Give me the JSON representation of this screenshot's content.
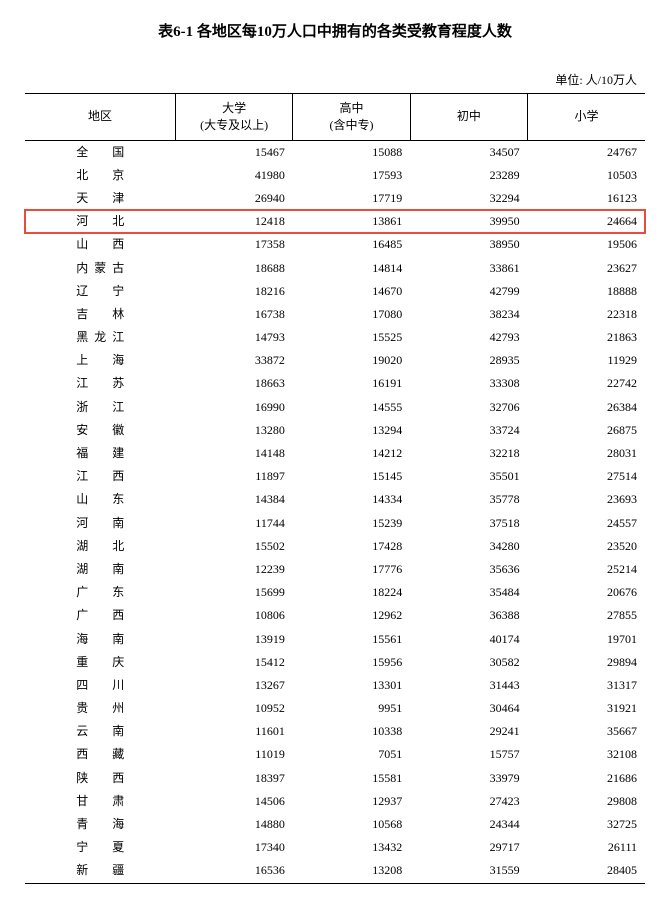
{
  "title": "表6-1 各地区每10万人口中拥有的各类受教育程度人数",
  "unit": "单位: 人/10万人",
  "columns": {
    "region": "地区",
    "univ": "大学",
    "univ_sub": "(大专及以上)",
    "high": "高中",
    "high_sub": "(含中专)",
    "middle": "初中",
    "primary": "小学"
  },
  "highlight_index": 3,
  "highlight_color": "#e74c3c",
  "rows": [
    {
      "region": "全　国",
      "univ": 15467,
      "high": 15088,
      "middle": 34507,
      "primary": 24767
    },
    {
      "region": "北　京",
      "univ": 41980,
      "high": 17593,
      "middle": 23289,
      "primary": 10503
    },
    {
      "region": "天　津",
      "univ": 26940,
      "high": 17719,
      "middle": 32294,
      "primary": 16123
    },
    {
      "region": "河　北",
      "univ": 12418,
      "high": 13861,
      "middle": 39950,
      "primary": 24664
    },
    {
      "region": "山　西",
      "univ": 17358,
      "high": 16485,
      "middle": 38950,
      "primary": 19506
    },
    {
      "region": "内蒙古",
      "univ": 18688,
      "high": 14814,
      "middle": 33861,
      "primary": 23627,
      "cls": "region-3ch"
    },
    {
      "region": "辽　宁",
      "univ": 18216,
      "high": 14670,
      "middle": 42799,
      "primary": 18888
    },
    {
      "region": "吉　林",
      "univ": 16738,
      "high": 17080,
      "middle": 38234,
      "primary": 22318
    },
    {
      "region": "黑龙江",
      "univ": 14793,
      "high": 15525,
      "middle": 42793,
      "primary": 21863,
      "cls": "region-3ch"
    },
    {
      "region": "上　海",
      "univ": 33872,
      "high": 19020,
      "middle": 28935,
      "primary": 11929
    },
    {
      "region": "江　苏",
      "univ": 18663,
      "high": 16191,
      "middle": 33308,
      "primary": 22742
    },
    {
      "region": "浙　江",
      "univ": 16990,
      "high": 14555,
      "middle": 32706,
      "primary": 26384
    },
    {
      "region": "安　徽",
      "univ": 13280,
      "high": 13294,
      "middle": 33724,
      "primary": 26875
    },
    {
      "region": "福　建",
      "univ": 14148,
      "high": 14212,
      "middle": 32218,
      "primary": 28031
    },
    {
      "region": "江　西",
      "univ": 11897,
      "high": 15145,
      "middle": 35501,
      "primary": 27514
    },
    {
      "region": "山　东",
      "univ": 14384,
      "high": 14334,
      "middle": 35778,
      "primary": 23693
    },
    {
      "region": "河　南",
      "univ": 11744,
      "high": 15239,
      "middle": 37518,
      "primary": 24557
    },
    {
      "region": "湖　北",
      "univ": 15502,
      "high": 17428,
      "middle": 34280,
      "primary": 23520
    },
    {
      "region": "湖　南",
      "univ": 12239,
      "high": 17776,
      "middle": 35636,
      "primary": 25214
    },
    {
      "region": "广　东",
      "univ": 15699,
      "high": 18224,
      "middle": 35484,
      "primary": 20676
    },
    {
      "region": "广　西",
      "univ": 10806,
      "high": 12962,
      "middle": 36388,
      "primary": 27855
    },
    {
      "region": "海　南",
      "univ": 13919,
      "high": 15561,
      "middle": 40174,
      "primary": 19701
    },
    {
      "region": "重　庆",
      "univ": 15412,
      "high": 15956,
      "middle": 30582,
      "primary": 29894
    },
    {
      "region": "四　川",
      "univ": 13267,
      "high": 13301,
      "middle": 31443,
      "primary": 31317
    },
    {
      "region": "贵　州",
      "univ": 10952,
      "high": 9951,
      "middle": 30464,
      "primary": 31921
    },
    {
      "region": "云　南",
      "univ": 11601,
      "high": 10338,
      "middle": 29241,
      "primary": 35667
    },
    {
      "region": "西　藏",
      "univ": 11019,
      "high": 7051,
      "middle": 15757,
      "primary": 32108
    },
    {
      "region": "陕　西",
      "univ": 18397,
      "high": 15581,
      "middle": 33979,
      "primary": 21686
    },
    {
      "region": "甘　肃",
      "univ": 14506,
      "high": 12937,
      "middle": 27423,
      "primary": 29808
    },
    {
      "region": "青　海",
      "univ": 14880,
      "high": 10568,
      "middle": 24344,
      "primary": 32725
    },
    {
      "region": "宁　夏",
      "univ": 17340,
      "high": 13432,
      "middle": 29717,
      "primary": 26111
    },
    {
      "region": "新　疆",
      "univ": 16536,
      "high": 13208,
      "middle": 31559,
      "primary": 28405
    }
  ]
}
